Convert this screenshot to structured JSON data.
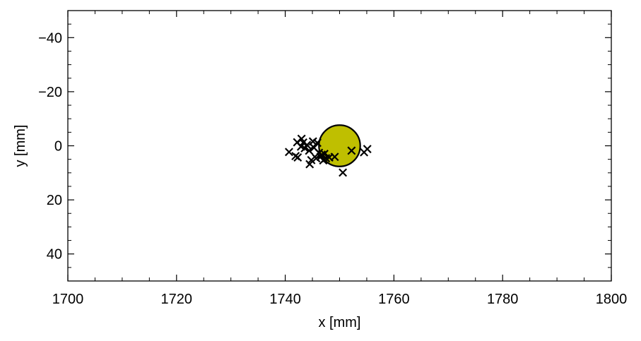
{
  "chart_data": {
    "type": "scatter",
    "xlabel": "x [mm]",
    "ylabel": "y [mm]",
    "xlim": [
      1700,
      1800
    ],
    "ylim": [
      50,
      -50
    ],
    "y_axis_inverted": true,
    "grid": false,
    "ticks_direction": "in",
    "x_ticks": [
      1700,
      1720,
      1740,
      1760,
      1780,
      1800
    ],
    "x_tick_labels": [
      "1700",
      "1720",
      "1740",
      "1760",
      "1780",
      "1800"
    ],
    "y_ticks": [
      -40,
      -20,
      0,
      20,
      40
    ],
    "y_tick_labels": [
      "−40",
      "−20",
      "0",
      "20",
      "40"
    ],
    "circle": {
      "center_x": 1750,
      "center_y": 0,
      "radius": 3.8,
      "fill": "#bfbf00",
      "edge": "#000000"
    },
    "points_marker": "x",
    "points_color": "#000000",
    "points": [
      {
        "x": 1740.7,
        "y": 2.3
      },
      {
        "x": 1741.9,
        "y": 3.8
      },
      {
        "x": 1742.2,
        "y": -1.3
      },
      {
        "x": 1742.3,
        "y": 4.3
      },
      {
        "x": 1742.9,
        "y": 0.3
      },
      {
        "x": 1743.0,
        "y": -2.6
      },
      {
        "x": 1743.3,
        "y": -1.2
      },
      {
        "x": 1743.6,
        "y": 0.9
      },
      {
        "x": 1744.0,
        "y": -0.3
      },
      {
        "x": 1744.4,
        "y": 1.8
      },
      {
        "x": 1744.5,
        "y": 6.8
      },
      {
        "x": 1744.8,
        "y": 5.3
      },
      {
        "x": 1745.1,
        "y": -1.6
      },
      {
        "x": 1745.3,
        "y": 0.7
      },
      {
        "x": 1745.7,
        "y": 4.6
      },
      {
        "x": 1745.9,
        "y": -1.1
      },
      {
        "x": 1746.2,
        "y": 2.6
      },
      {
        "x": 1746.5,
        "y": 4.1
      },
      {
        "x": 1746.7,
        "y": 3.3
      },
      {
        "x": 1747.0,
        "y": 5.4
      },
      {
        "x": 1747.2,
        "y": 3.0
      },
      {
        "x": 1747.5,
        "y": 4.6
      },
      {
        "x": 1748.1,
        "y": 4.3
      },
      {
        "x": 1749.1,
        "y": 4.1
      },
      {
        "x": 1750.6,
        "y": 9.9
      },
      {
        "x": 1752.2,
        "y": 1.8
      },
      {
        "x": 1754.5,
        "y": 2.4
      },
      {
        "x": 1755.1,
        "y": 1.2
      }
    ]
  }
}
